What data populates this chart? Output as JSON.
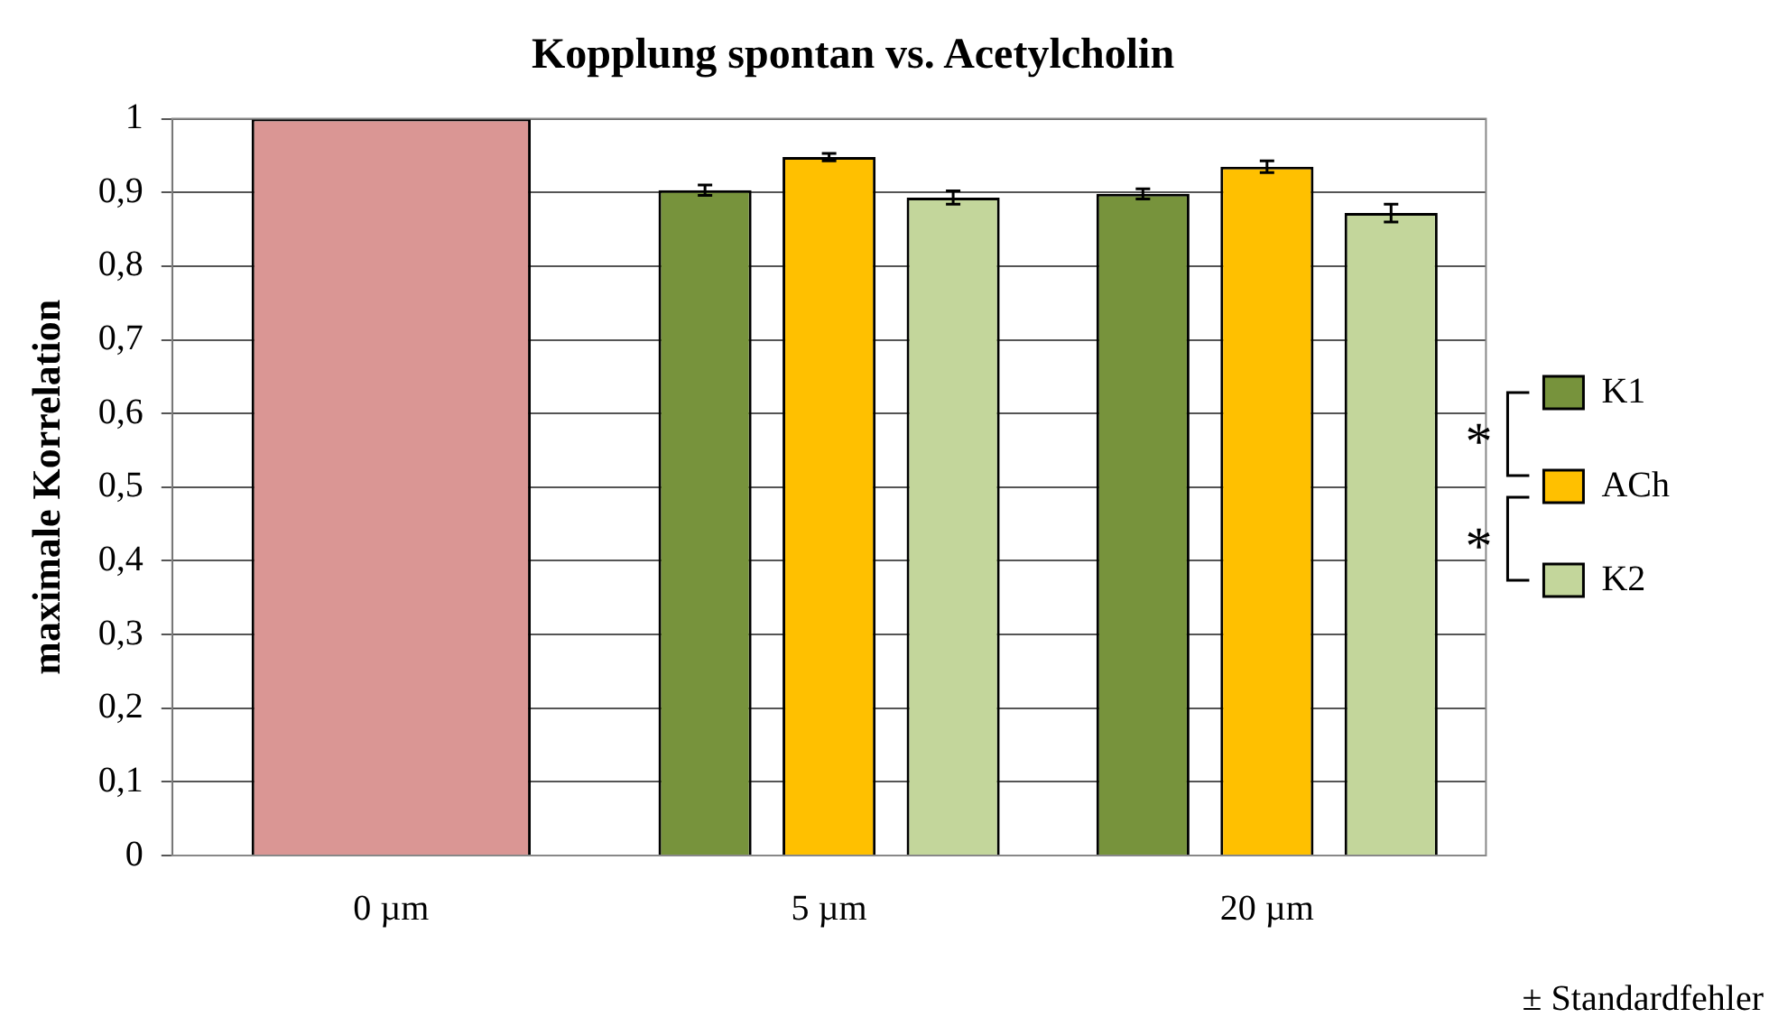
{
  "chart_data": {
    "type": "bar",
    "title": "Kopplung spontan vs. Acetylcholin",
    "ylabel": "maximale Korrelation",
    "categories": [
      "0 µm",
      "5 µm",
      "20 µm"
    ],
    "series": [
      {
        "color": "#da9694",
        "values": [
          1,
          null,
          null
        ]
      },
      {
        "name": "K1",
        "color": "#77933c",
        "values": [
          null,
          0.903,
          0.898
        ],
        "errors": [
          null,
          0.007,
          0.007
        ]
      },
      {
        "name": "ACh",
        "color": "#ffc000",
        "values": [
          null,
          0.948,
          0.935
        ],
        "errors": [
          null,
          0.005,
          0.008
        ]
      },
      {
        "name": "K2",
        "color": "#c3d69b",
        "values": [
          null,
          0.893,
          0.872
        ],
        "errors": [
          null,
          0.009,
          0.012
        ]
      }
    ],
    "ylim": [
      0,
      1
    ],
    "yticks": [
      0,
      {
        "value": 0.1,
        "label": "0,1"
      },
      {
        "value": 0.2,
        "label": "0,2"
      },
      {
        "value": 0.3,
        "label": "0,3"
      },
      {
        "value": 0.4,
        "label": "0,4"
      },
      {
        "value": 0.5,
        "label": "0,5"
      },
      {
        "value": 0.6,
        "label": "0,6"
      },
      {
        "value": 0.7,
        "label": "0,7"
      },
      {
        "value": 0.8,
        "label": "0,8"
      },
      {
        "value": 0.9,
        "label": "0,9"
      },
      1
    ],
    "grid": "y",
    "legend": "right",
    "annotations": [
      "*",
      "*",
      "± Standardfehler"
    ]
  }
}
